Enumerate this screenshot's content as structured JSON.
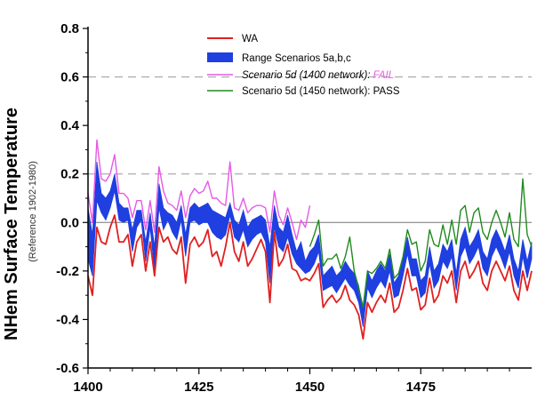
{
  "chart_data": {
    "type": "line",
    "title": "",
    "ylabel": "NHem Surface Temperature",
    "ylabel_sub": "(Reference 1902-1980)",
    "xlabel": "",
    "xlim": [
      1400,
      1500
    ],
    "ylim": [
      -0.6,
      0.8
    ],
    "x_ticks": [
      1400,
      1425,
      1450,
      1475
    ],
    "x_tick_labels": [
      "1400",
      "1425",
      "1450",
      "1475"
    ],
    "y_ticks": [
      0.8,
      0.6,
      0.4,
      0.2,
      0.0,
      -0.2,
      -0.4,
      -0.6
    ],
    "y_tick_labels": [
      "0.8",
      "0.6",
      "0.4",
      "0.2",
      "0.0",
      "-0.2",
      "-0.4",
      "-0.6"
    ],
    "reference_lines": [
      0.6,
      0.2
    ],
    "zero_line": 0.0,
    "colors": {
      "wa": "#e02020",
      "range": "#1f3fe0",
      "scen1400": "#e65ae6",
      "scen1450": "#1f8a1f"
    },
    "legend": {
      "position": "top-center",
      "wa": "WA",
      "range": "Range Scenarios 5a,b,c",
      "scen1400_text": "Scenario 5d (1400 network): ",
      "scen1400_fail": "FAIL",
      "scen1450": "Scenario 5d (1450 network): PASS"
    },
    "series": [
      {
        "name": "WA",
        "x_start": 1400,
        "values": [
          -0.22,
          -0.3,
          -0.02,
          -0.08,
          -0.09,
          -0.02,
          0.03,
          -0.08,
          -0.08,
          -0.05,
          -0.18,
          -0.08,
          -0.05,
          -0.2,
          -0.08,
          -0.22,
          -0.02,
          -0.08,
          -0.06,
          -0.11,
          -0.13,
          -0.06,
          -0.25,
          -0.09,
          -0.06,
          -0.1,
          -0.08,
          -0.03,
          -0.14,
          -0.12,
          -0.18,
          -0.1,
          0.0,
          -0.12,
          -0.16,
          -0.08,
          -0.18,
          -0.15,
          -0.11,
          -0.07,
          -0.12,
          -0.33,
          -0.04,
          -0.18,
          -0.15,
          -0.09,
          -0.19,
          -0.2,
          -0.24,
          -0.23,
          -0.24,
          -0.21,
          -0.17,
          -0.35,
          -0.32,
          -0.3,
          -0.33,
          -0.31,
          -0.26,
          -0.32,
          -0.34,
          -0.38,
          -0.48,
          -0.33,
          -0.37,
          -0.33,
          -0.3,
          -0.33,
          -0.25,
          -0.37,
          -0.35,
          -0.28,
          -0.19,
          -0.28,
          -0.27,
          -0.36,
          -0.34,
          -0.23,
          -0.33,
          -0.3,
          -0.22,
          -0.25,
          -0.2,
          -0.33,
          -0.2,
          -0.16,
          -0.23,
          -0.2,
          -0.16,
          -0.25,
          -0.28,
          -0.2,
          -0.16,
          -0.2,
          -0.24,
          -0.18,
          -0.28,
          -0.32,
          -0.2,
          -0.28,
          -0.2
        ]
      },
      {
        "name": "Range Scenarios 5a,b,c",
        "x_start": 1400,
        "lower": [
          -0.15,
          -0.22,
          0.09,
          0.04,
          0.01,
          0.06,
          0.13,
          0.01,
          0.0,
          0.01,
          -0.12,
          -0.02,
          0.01,
          -0.16,
          -0.02,
          -0.2,
          0.06,
          -0.03,
          0.01,
          -0.04,
          -0.07,
          0.01,
          -0.14,
          0.0,
          0.01,
          -0.01,
          0.0,
          0.0,
          -0.04,
          -0.06,
          -0.07,
          -0.05,
          0.03,
          -0.06,
          -0.08,
          -0.03,
          -0.1,
          -0.07,
          -0.05,
          -0.04,
          -0.08,
          -0.25,
          -0.02,
          -0.1,
          -0.12,
          -0.06,
          -0.13,
          -0.17,
          -0.19,
          -0.21,
          -0.2,
          -0.17,
          -0.12,
          -0.28,
          -0.27,
          -0.26,
          -0.29,
          -0.26,
          -0.23,
          -0.26,
          -0.28,
          -0.33,
          -0.43,
          -0.27,
          -0.31,
          -0.27,
          -0.24,
          -0.27,
          -0.2,
          -0.31,
          -0.3,
          -0.22,
          -0.13,
          -0.22,
          -0.22,
          -0.31,
          -0.29,
          -0.17,
          -0.27,
          -0.24,
          -0.16,
          -0.19,
          -0.14,
          -0.28,
          -0.14,
          -0.1,
          -0.17,
          -0.14,
          -0.1,
          -0.19,
          -0.22,
          -0.14,
          -0.1,
          -0.14,
          -0.19,
          -0.12,
          -0.22,
          -0.27,
          -0.14,
          -0.23,
          -0.15
        ],
        "upper": [
          0.06,
          -0.05,
          0.25,
          0.12,
          0.1,
          0.13,
          0.2,
          0.08,
          0.06,
          0.06,
          -0.03,
          0.05,
          0.05,
          -0.08,
          0.04,
          -0.1,
          0.16,
          0.06,
          0.04,
          0.03,
          0.0,
          0.07,
          -0.05,
          0.06,
          0.08,
          0.06,
          0.07,
          0.08,
          0.05,
          0.04,
          0.03,
          0.02,
          0.08,
          0.01,
          -0.01,
          0.05,
          -0.02,
          0.01,
          0.02,
          0.03,
          0.01,
          -0.1,
          0.07,
          -0.02,
          -0.04,
          0.03,
          -0.05,
          -0.12,
          -0.08,
          -0.16,
          -0.12,
          -0.1,
          -0.05,
          -0.22,
          -0.2,
          -0.18,
          -0.22,
          -0.2,
          -0.16,
          -0.19,
          -0.21,
          -0.26,
          -0.36,
          -0.2,
          -0.24,
          -0.2,
          -0.17,
          -0.2,
          -0.13,
          -0.25,
          -0.22,
          -0.15,
          -0.06,
          -0.15,
          -0.15,
          -0.24,
          -0.22,
          -0.1,
          -0.2,
          -0.17,
          -0.09,
          -0.12,
          -0.07,
          -0.21,
          -0.07,
          -0.02,
          -0.1,
          -0.07,
          -0.03,
          -0.12,
          -0.15,
          -0.07,
          -0.03,
          -0.07,
          -0.12,
          -0.05,
          -0.15,
          -0.2,
          -0.07,
          -0.16,
          -0.08
        ]
      },
      {
        "name": "Scenario 5d (1400 network)",
        "x_start": 1400,
        "values": [
          0.12,
          0.0,
          0.34,
          0.18,
          0.17,
          0.2,
          0.28,
          0.12,
          0.12,
          0.1,
          0.02,
          0.09,
          0.09,
          -0.03,
          0.09,
          -0.04,
          0.23,
          0.13,
          0.08,
          0.07,
          0.05,
          0.13,
          0.02,
          0.11,
          0.14,
          0.12,
          0.13,
          0.17,
          0.1,
          0.1,
          0.08,
          0.07,
          0.25,
          0.06,
          0.05,
          0.1,
          0.04,
          0.06,
          0.07,
          0.07,
          0.06,
          -0.04,
          0.13,
          0.03,
          -0.01,
          0.06,
          0.0,
          -0.07,
          0.01,
          -0.02,
          0.07
        ]
      },
      {
        "name": "Scenario 5d (1450 network)",
        "x_start": 1450,
        "values": [
          -0.1,
          -0.05,
          0.01,
          -0.18,
          -0.15,
          -0.15,
          -0.13,
          -0.19,
          -0.14,
          -0.06,
          -0.2,
          -0.27,
          -0.35,
          -0.2,
          -0.21,
          -0.19,
          -0.16,
          -0.19,
          -0.11,
          -0.23,
          -0.21,
          -0.14,
          -0.03,
          -0.09,
          -0.08,
          -0.2,
          -0.16,
          -0.03,
          -0.09,
          -0.1,
          -0.01,
          -0.09,
          0.01,
          -0.09,
          0.05,
          0.07,
          -0.04,
          0.04,
          0.06,
          -0.04,
          -0.07,
          0.0,
          0.05,
          0.0,
          -0.06,
          0.04,
          -0.07,
          -0.1,
          0.18,
          -0.05,
          -0.1
        ]
      }
    ]
  }
}
